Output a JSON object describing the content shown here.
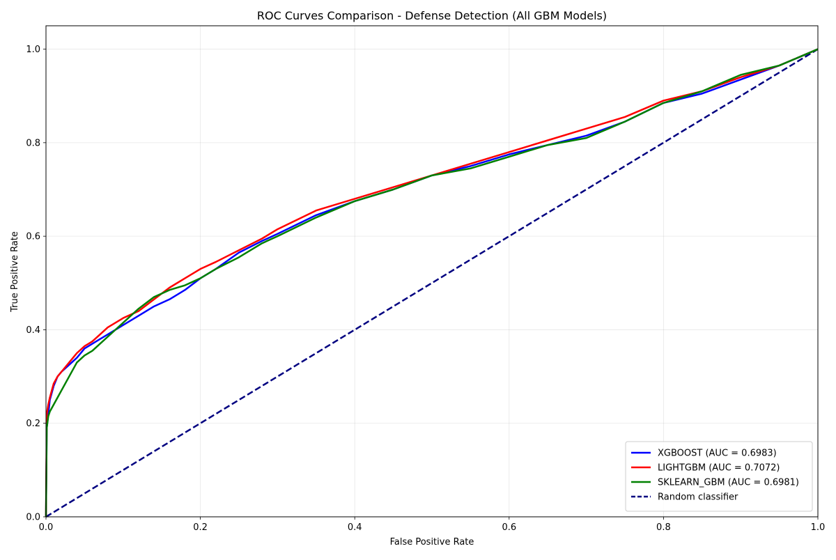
{
  "chart_data": {
    "type": "line",
    "title": "ROC Curves Comparison - Defense Detection (All GBM Models)",
    "xlabel": "False Positive Rate",
    "ylabel": "True Positive Rate",
    "xlim": [
      0,
      1
    ],
    "ylim": [
      0,
      1.05
    ],
    "xticks": [
      0.0,
      0.2,
      0.4,
      0.6,
      0.8,
      1.0
    ],
    "yticks": [
      0.0,
      0.2,
      0.4,
      0.6,
      0.8,
      1.0
    ],
    "tick_labels_x": [
      "0.0",
      "0.2",
      "0.4",
      "0.6",
      "0.8",
      "1.0"
    ],
    "tick_labels_y": [
      "0.0",
      "0.2",
      "0.4",
      "0.6",
      "0.8",
      "1.0"
    ],
    "grid": true,
    "legend_position": "lower-right",
    "series": [
      {
        "name": "XGBOOST (AUC = 0.6983)",
        "color": "#0000ff",
        "style": "solid",
        "x": [
          0,
          0.001,
          0.003,
          0.005,
          0.01,
          0.015,
          0.02,
          0.03,
          0.04,
          0.05,
          0.06,
          0.07,
          0.08,
          0.1,
          0.12,
          0.14,
          0.16,
          0.18,
          0.2,
          0.22,
          0.25,
          0.28,
          0.3,
          0.35,
          0.4,
          0.45,
          0.5,
          0.55,
          0.6,
          0.65,
          0.7,
          0.75,
          0.8,
          0.85,
          0.9,
          0.95,
          1.0
        ],
        "y": [
          0,
          0.19,
          0.22,
          0.25,
          0.28,
          0.3,
          0.31,
          0.325,
          0.34,
          0.36,
          0.37,
          0.38,
          0.39,
          0.41,
          0.43,
          0.45,
          0.465,
          0.485,
          0.51,
          0.53,
          0.565,
          0.59,
          0.605,
          0.645,
          0.675,
          0.7,
          0.73,
          0.75,
          0.775,
          0.795,
          0.815,
          0.845,
          0.885,
          0.905,
          0.935,
          0.965,
          1.0
        ]
      },
      {
        "name": "LIGHTGBM (AUC = 0.7072)",
        "color": "#ff0000",
        "style": "solid",
        "x": [
          0,
          0.001,
          0.003,
          0.005,
          0.01,
          0.015,
          0.02,
          0.03,
          0.04,
          0.05,
          0.06,
          0.07,
          0.08,
          0.1,
          0.12,
          0.14,
          0.16,
          0.18,
          0.2,
          0.22,
          0.25,
          0.28,
          0.3,
          0.35,
          0.4,
          0.45,
          0.5,
          0.55,
          0.6,
          0.65,
          0.7,
          0.75,
          0.8,
          0.85,
          0.9,
          0.95,
          1.0
        ],
        "y": [
          0,
          0.22,
          0.24,
          0.255,
          0.285,
          0.3,
          0.31,
          0.33,
          0.35,
          0.365,
          0.375,
          0.39,
          0.405,
          0.425,
          0.44,
          0.465,
          0.49,
          0.51,
          0.53,
          0.545,
          0.57,
          0.595,
          0.615,
          0.655,
          0.68,
          0.705,
          0.73,
          0.755,
          0.78,
          0.805,
          0.83,
          0.855,
          0.89,
          0.91,
          0.94,
          0.965,
          1.0
        ]
      },
      {
        "name": "SKLEARN_GBM (AUC = 0.6981)",
        "color": "#008000",
        "style": "solid",
        "x": [
          0,
          0.001,
          0.003,
          0.005,
          0.01,
          0.015,
          0.02,
          0.03,
          0.04,
          0.05,
          0.06,
          0.07,
          0.08,
          0.1,
          0.12,
          0.14,
          0.16,
          0.18,
          0.2,
          0.22,
          0.25,
          0.28,
          0.3,
          0.35,
          0.4,
          0.45,
          0.5,
          0.55,
          0.6,
          0.65,
          0.7,
          0.75,
          0.8,
          0.85,
          0.9,
          0.95,
          1.0
        ],
        "y": [
          0,
          0.19,
          0.215,
          0.225,
          0.24,
          0.255,
          0.27,
          0.3,
          0.33,
          0.345,
          0.355,
          0.37,
          0.385,
          0.415,
          0.445,
          0.47,
          0.485,
          0.495,
          0.51,
          0.53,
          0.555,
          0.585,
          0.6,
          0.64,
          0.675,
          0.7,
          0.73,
          0.745,
          0.77,
          0.795,
          0.81,
          0.845,
          0.885,
          0.91,
          0.945,
          0.965,
          1.0
        ]
      },
      {
        "name": "Random classifier",
        "color": "#000080",
        "style": "dashed",
        "x": [
          0,
          1
        ],
        "y": [
          0,
          1
        ]
      }
    ]
  }
}
